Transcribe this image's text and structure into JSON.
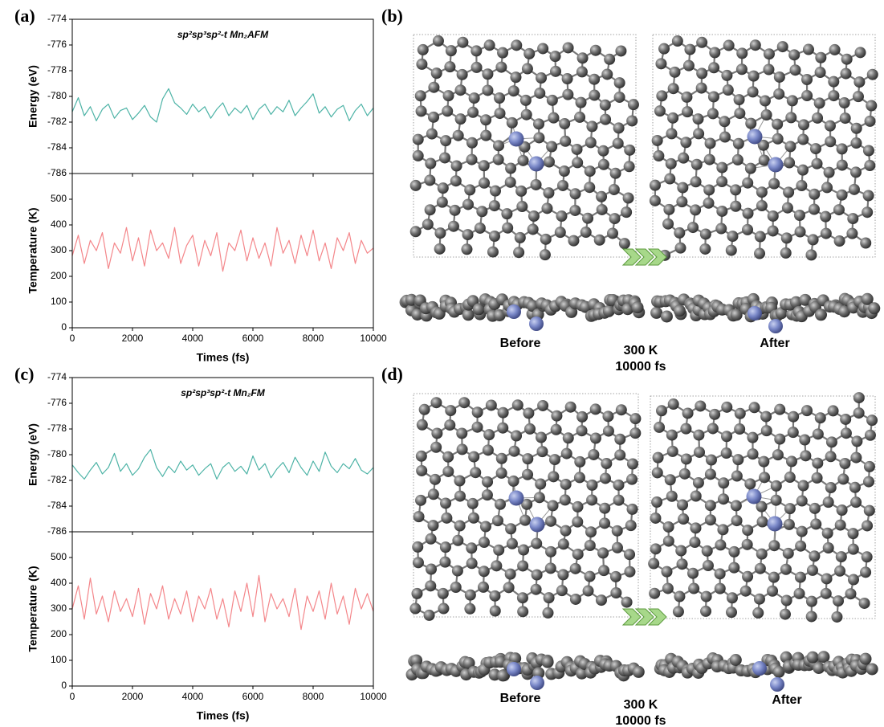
{
  "chart_data": [
    {
      "type": "line",
      "panel_label": "(a)",
      "title": "sp²sp³sp²-t Mn₂AFM",
      "ylabel": "Energy (eV)",
      "color": "#4db3a6",
      "xlim": [
        0,
        10000
      ],
      "xticks": [
        0,
        2000,
        4000,
        6000,
        8000,
        10000
      ],
      "ylim": [
        -786,
        -774
      ],
      "yticks": [
        -786,
        -784,
        -782,
        -780,
        -778,
        -776,
        -774
      ],
      "x": [
        0,
        200,
        400,
        600,
        800,
        1000,
        1200,
        1400,
        1600,
        1800,
        2000,
        2200,
        2400,
        2600,
        2800,
        3000,
        3200,
        3400,
        3600,
        3800,
        4000,
        4200,
        4400,
        4600,
        4800,
        5000,
        5200,
        5400,
        5600,
        5800,
        6000,
        6200,
        6400,
        6600,
        6800,
        7000,
        7200,
        7400,
        7600,
        7800,
        8000,
        8200,
        8400,
        8600,
        8800,
        9000,
        9200,
        9400,
        9600,
        9800,
        10000
      ],
      "values": [
        -781.2,
        -780.1,
        -781.5,
        -780.8,
        -781.9,
        -781.0,
        -780.6,
        -781.7,
        -781.1,
        -780.9,
        -781.8,
        -781.3,
        -780.7,
        -781.6,
        -782.0,
        -780.2,
        -779.4,
        -780.5,
        -780.9,
        -781.4,
        -780.6,
        -781.2,
        -780.8,
        -781.7,
        -781.0,
        -780.5,
        -781.5,
        -780.9,
        -781.3,
        -780.7,
        -781.8,
        -781.0,
        -780.6,
        -781.4,
        -780.8,
        -781.2,
        -780.3,
        -781.5,
        -780.9,
        -780.4,
        -779.8,
        -781.3,
        -780.8,
        -781.6,
        -781.0,
        -780.7,
        -781.9,
        -781.1,
        -780.6,
        -781.5,
        -780.9
      ]
    },
    {
      "type": "line",
      "ylabel": "Temperature (K)",
      "xlabel": "Times (fs)",
      "color": "#f4868a",
      "xlim": [
        0,
        10000
      ],
      "xticks": [
        0,
        2000,
        4000,
        6000,
        8000,
        10000
      ],
      "ylim": [
        0,
        600
      ],
      "yticks": [
        0,
        100,
        200,
        300,
        400,
        500
      ],
      "x": [
        0,
        200,
        400,
        600,
        800,
        1000,
        1200,
        1400,
        1600,
        1800,
        2000,
        2200,
        2400,
        2600,
        2800,
        3000,
        3200,
        3400,
        3600,
        3800,
        4000,
        4200,
        4400,
        4600,
        4800,
        5000,
        5200,
        5400,
        5600,
        5800,
        6000,
        6200,
        6400,
        6600,
        6800,
        7000,
        7200,
        7400,
        7600,
        7800,
        8000,
        8200,
        8400,
        8600,
        8800,
        9000,
        9200,
        9400,
        9600,
        9800,
        10000
      ],
      "values": [
        280,
        360,
        250,
        340,
        300,
        370,
        230,
        330,
        290,
        390,
        260,
        350,
        240,
        380,
        300,
        330,
        270,
        390,
        250,
        320,
        360,
        240,
        340,
        280,
        370,
        220,
        330,
        300,
        380,
        260,
        350,
        270,
        330,
        240,
        390,
        290,
        340,
        250,
        360,
        280,
        380,
        260,
        330,
        230,
        350,
        300,
        370,
        250,
        340,
        290,
        310
      ]
    },
    {
      "type": "line",
      "panel_label": "(c)",
      "title": "sp²sp³sp²-t Mn₂FM",
      "ylabel": "Energy (eV)",
      "color": "#4db3a6",
      "xlim": [
        0,
        10000
      ],
      "xticks": [
        0,
        2000,
        4000,
        6000,
        8000,
        10000
      ],
      "ylim": [
        -786,
        -774
      ],
      "yticks": [
        -786,
        -784,
        -782,
        -780,
        -778,
        -776,
        -774
      ],
      "x": [
        0,
        200,
        400,
        600,
        800,
        1000,
        1200,
        1400,
        1600,
        1800,
        2000,
        2200,
        2400,
        2600,
        2800,
        3000,
        3200,
        3400,
        3600,
        3800,
        4000,
        4200,
        4400,
        4600,
        4800,
        5000,
        5200,
        5400,
        5600,
        5800,
        6000,
        6200,
        6400,
        6600,
        6800,
        7000,
        7200,
        7400,
        7600,
        7800,
        8000,
        8200,
        8400,
        8600,
        8800,
        9000,
        9200,
        9400,
        9600,
        9800,
        10000
      ],
      "values": [
        -780.8,
        -781.4,
        -781.9,
        -781.2,
        -780.6,
        -781.5,
        -781.0,
        -779.9,
        -781.3,
        -780.7,
        -781.6,
        -781.1,
        -780.2,
        -779.6,
        -781.0,
        -781.7,
        -780.9,
        -781.4,
        -780.5,
        -781.2,
        -780.8,
        -781.6,
        -781.1,
        -780.7,
        -781.9,
        -781.0,
        -780.6,
        -781.3,
        -780.9,
        -781.5,
        -780.1,
        -781.2,
        -780.7,
        -781.8,
        -781.1,
        -780.6,
        -781.4,
        -780.2,
        -781.0,
        -781.6,
        -780.5,
        -781.3,
        -779.8,
        -780.9,
        -781.4,
        -780.7,
        -781.1,
        -780.3,
        -781.2,
        -781.5,
        -781.0
      ]
    },
    {
      "type": "line",
      "ylabel": "Temperature (K)",
      "xlabel": "Times (fs)",
      "color": "#f4868a",
      "xlim": [
        0,
        10000
      ],
      "xticks": [
        0,
        2000,
        4000,
        6000,
        8000,
        10000
      ],
      "ylim": [
        0,
        600
      ],
      "yticks": [
        0,
        100,
        200,
        300,
        400,
        500
      ],
      "x": [
        0,
        200,
        400,
        600,
        800,
        1000,
        1200,
        1400,
        1600,
        1800,
        2000,
        2200,
        2400,
        2600,
        2800,
        3000,
        3200,
        3400,
        3600,
        3800,
        4000,
        4200,
        4400,
        4600,
        4800,
        5000,
        5200,
        5400,
        5600,
        5800,
        6000,
        6200,
        6400,
        6600,
        6800,
        7000,
        7200,
        7400,
        7600,
        7800,
        8000,
        8200,
        8400,
        8600,
        8800,
        9000,
        9200,
        9400,
        9600,
        9800,
        10000
      ],
      "values": [
        300,
        390,
        260,
        420,
        280,
        350,
        250,
        370,
        290,
        340,
        270,
        380,
        240,
        360,
        300,
        390,
        260,
        340,
        280,
        370,
        250,
        350,
        300,
        380,
        260,
        340,
        230,
        370,
        290,
        400,
        270,
        430,
        250,
        360,
        300,
        340,
        270,
        380,
        220,
        350,
        290,
        370,
        260,
        400,
        280,
        350,
        240,
        380,
        300,
        360,
        290
      ]
    }
  ],
  "structures": [
    {
      "panel_label": "(b)",
      "before": "Before",
      "after": "After",
      "temperature": "300 K",
      "duration": "10000 fs"
    },
    {
      "panel_label": "(d)",
      "before": "Before",
      "after": "After",
      "temperature": "300 K",
      "duration": "10000 fs"
    }
  ]
}
